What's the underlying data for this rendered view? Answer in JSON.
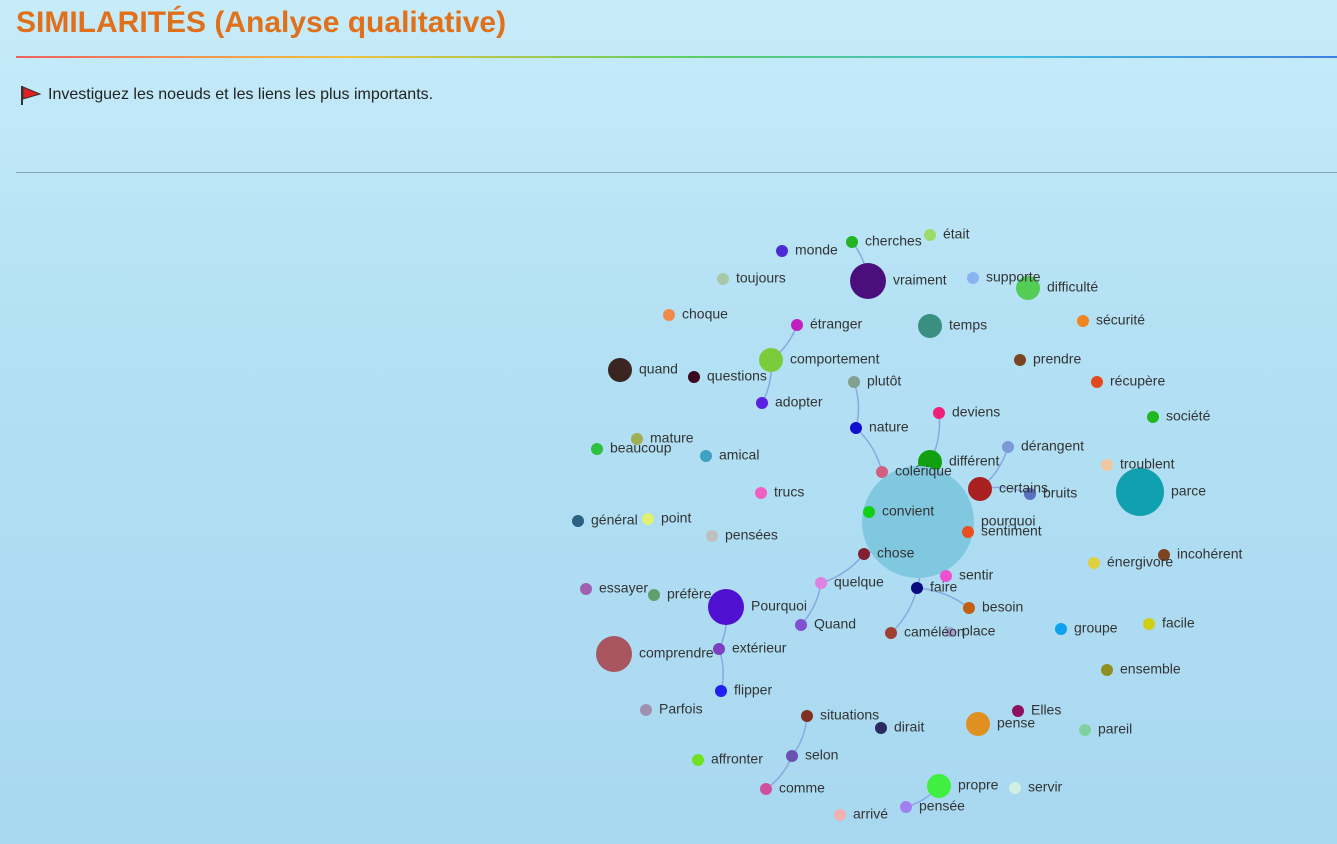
{
  "header": {
    "title": "SIMILARITÉS (Analyse qualitative)",
    "instruction": "Investiguez les noeuds et les liens les plus importants."
  },
  "nodes": [
    {
      "label": "monde",
      "color": "#4b2bd6"
    },
    {
      "label": "cherches",
      "color": "#22b422"
    },
    {
      "label": "était",
      "color": "#9edc6a"
    },
    {
      "label": "toujours",
      "color": "#a8c8a8"
    },
    {
      "label": "vraiment",
      "color": "#4a0f7a"
    },
    {
      "label": "supporte",
      "color": "#8ab4f0"
    },
    {
      "label": "difficulté",
      "color": "#55cc55"
    },
    {
      "label": "choque",
      "color": "#f08a4a"
    },
    {
      "label": "étranger",
      "color": "#c020c0"
    },
    {
      "label": "temps",
      "color": "#3a9080"
    },
    {
      "label": "sécurité",
      "color": "#f0841e"
    },
    {
      "label": "quand",
      "color": "#3a2520"
    },
    {
      "label": "questions",
      "color": "#3a0820"
    },
    {
      "label": "comportement",
      "color": "#7acc3a"
    },
    {
      "label": "prendre",
      "color": "#7a4520"
    },
    {
      "label": "plutôt",
      "color": "#80a090"
    },
    {
      "label": "récupère",
      "color": "#e04a1e"
    },
    {
      "label": "adopter",
      "color": "#5a20e0"
    },
    {
      "label": "deviens",
      "color": "#f0207a"
    },
    {
      "label": "société",
      "color": "#20b820"
    },
    {
      "label": "nature",
      "color": "#1010d0"
    },
    {
      "label": "mature",
      "color": "#a0b050"
    },
    {
      "label": "beaucoup",
      "color": "#30c040"
    },
    {
      "label": "amical",
      "color": "#40a0c0"
    },
    {
      "label": "dérangent",
      "color": "#7a9ad8"
    },
    {
      "label": "différent",
      "color": "#10a010"
    },
    {
      "label": "colérique",
      "color": "#d06080"
    },
    {
      "label": "troublent",
      "color": "#f0c8a0"
    },
    {
      "label": "trucs",
      "color": "#f060c0"
    },
    {
      "label": "certains",
      "color": "#a82020"
    },
    {
      "label": "bruits",
      "color": "#5a70c0"
    },
    {
      "label": "parce",
      "color": "#10a0b0"
    },
    {
      "label": "pourquoi",
      "color": "#80c8e0"
    },
    {
      "label": "convient",
      "color": "#10d010"
    },
    {
      "label": "général",
      "color": "#2a6080"
    },
    {
      "label": "point",
      "color": "#e0f070"
    },
    {
      "label": "pensées",
      "color": "#c0c0c0"
    },
    {
      "label": "sentiment",
      "color": "#e85020"
    },
    {
      "label": "chose",
      "color": "#802030"
    },
    {
      "label": "énergivore",
      "color": "#e0d040"
    },
    {
      "label": "incohérent",
      "color": "#7a4520"
    },
    {
      "label": "sentir",
      "color": "#f050d0"
    },
    {
      "label": "quelque",
      "color": "#e080e0"
    },
    {
      "label": "essayer",
      "color": "#a060b0"
    },
    {
      "label": "préfère",
      "color": "#60a070"
    },
    {
      "label": "faire",
      "color": "#0a0a80"
    },
    {
      "label": "Pourquoi",
      "color": "#5010d0"
    },
    {
      "label": "besoin",
      "color": "#c06010"
    },
    {
      "label": "Quand",
      "color": "#8050d0"
    },
    {
      "label": "groupe",
      "color": "#10a0f0"
    },
    {
      "label": "facile",
      "color": "#d0d010"
    },
    {
      "label": "caméléon",
      "color": "#a04030"
    },
    {
      "label": "place",
      "color": "#a0a0d0"
    },
    {
      "label": "comprendre",
      "color": "#a85560"
    },
    {
      "label": "extérieur",
      "color": "#7a40c0"
    },
    {
      "label": "ensemble",
      "color": "#909020"
    },
    {
      "label": "flipper",
      "color": "#2020f0"
    },
    {
      "label": "Parfois",
      "color": "#a090b0"
    },
    {
      "label": "situations",
      "color": "#803020"
    },
    {
      "label": "Elles",
      "color": "#901060"
    },
    {
      "label": "dirait",
      "color": "#2a2a60"
    },
    {
      "label": "pense",
      "color": "#e09020"
    },
    {
      "label": "pareil",
      "color": "#80d0a0"
    },
    {
      "label": "affronter",
      "color": "#70e020"
    },
    {
      "label": "selon",
      "color": "#6a50b0"
    },
    {
      "label": "propre",
      "color": "#40f040"
    },
    {
      "label": "servir",
      "color": "#d0f0e0"
    },
    {
      "label": "comme",
      "color": "#d050a0"
    },
    {
      "label": "pensée",
      "color": "#a080f0"
    },
    {
      "label": "arrivé",
      "color": "#f0b0b0"
    }
  ]
}
